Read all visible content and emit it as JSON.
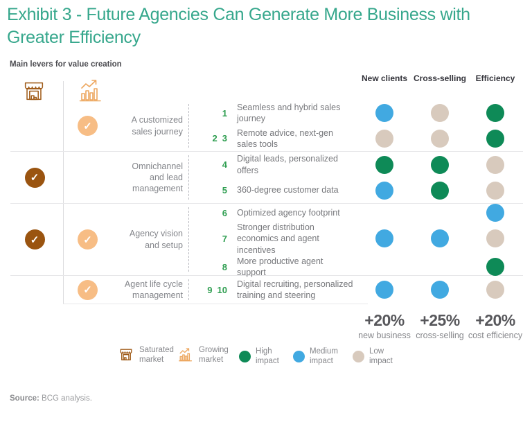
{
  "title": "Exhibit 3 - Future Agencies Can Generate More Business with Greater Efficiency",
  "subtitle": "Main levers for value creation",
  "colors": {
    "title": "#36a78c",
    "high": "#0e8a57",
    "medium": "#41a9e1",
    "low": "#d8cabd",
    "saturated_check": "#9a5410",
    "growing_check": "#f7bd85",
    "number_green": "#2f9e51",
    "saturated_icon_stroke": "#a05c1a",
    "growing_icon_stroke": "#eda75f"
  },
  "chart_data": {
    "type": "matrix",
    "title": "Main levers for value creation",
    "columns": [
      "New clients",
      "Cross-selling",
      "Efficiency"
    ],
    "impact_scale": [
      "high",
      "medium",
      "low"
    ],
    "groups": [
      {
        "label": "A customized sales journey",
        "saturated": false,
        "growing": true,
        "items": [
          {
            "numbers": [
              "1"
            ],
            "text": "Seamless and hybrid sales journey",
            "impacts": [
              "medium",
              "low",
              "high"
            ]
          },
          {
            "numbers": [
              "2",
              "3"
            ],
            "text": "Remote advice, next-gen sales tools",
            "impacts": [
              "low",
              "low",
              "high"
            ]
          }
        ]
      },
      {
        "label": "Omnichannel and lead management",
        "saturated": true,
        "growing": false,
        "items": [
          {
            "numbers": [
              "4"
            ],
            "text": "Digital leads, personalized offers",
            "impacts": [
              "high",
              "high",
              "low"
            ]
          },
          {
            "numbers": [
              "5"
            ],
            "text": "360-degree customer data",
            "impacts": [
              "medium",
              "high",
              "low"
            ]
          }
        ]
      },
      {
        "label": "Agency vision and setup",
        "saturated": true,
        "growing": true,
        "items": [
          {
            "numbers": [
              "6"
            ],
            "text": "Optimized agency footprint",
            "impacts": [
              null,
              null,
              "medium"
            ]
          },
          {
            "numbers": [
              "7"
            ],
            "text": "Stronger distribution economics and agent incentives",
            "impacts": [
              "medium",
              "medium",
              "low"
            ]
          },
          {
            "numbers": [
              "8"
            ],
            "text": "More productive agent support",
            "impacts": [
              null,
              null,
              "high"
            ]
          }
        ]
      },
      {
        "label": "Agent life cycle management",
        "saturated": false,
        "growing": true,
        "items": [
          {
            "numbers": [
              "9",
              "10"
            ],
            "text": "Digital recruiting, personalized training and steering",
            "impacts": [
              "medium",
              "medium",
              "low"
            ]
          }
        ]
      }
    ],
    "totals": [
      {
        "value": "+20%",
        "label": "new business"
      },
      {
        "value": "+25%",
        "label": "cross-selling"
      },
      {
        "value": "+20%",
        "label": "cost efficiency"
      }
    ],
    "legend": [
      {
        "key": "saturated",
        "label": "Saturated market"
      },
      {
        "key": "growing",
        "label": "Growing market"
      },
      {
        "key": "high",
        "label": "High impact"
      },
      {
        "key": "medium",
        "label": "Medium impact"
      },
      {
        "key": "low",
        "label": "Low impact"
      }
    ]
  },
  "source": {
    "label": "Source:",
    "text": "BCG analysis."
  }
}
